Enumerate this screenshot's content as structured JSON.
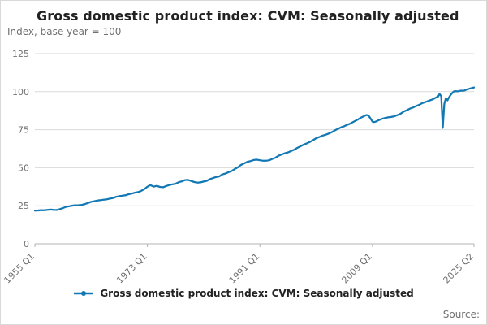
{
  "page": {
    "title": "Gross domestic product index: CVM: Seasonally adjusted",
    "subtitle": "Index, base year = 100",
    "legend_label": "Gross domestic product index: CVM: Seasonally adjusted",
    "source_label": "Source:"
  },
  "colors": {
    "line": "#1178b4",
    "grid": "#d9d9d9",
    "axis": "#b3b3b3",
    "text": "#222222",
    "muted": "#707071"
  },
  "chart_data": {
    "type": "line",
    "title": "Gross domestic product index: CVM: Seasonally adjusted",
    "subtitle": "Index, base year = 100",
    "xlabel": "",
    "ylabel": "Index, base year = 100",
    "ylim": [
      0,
      125
    ],
    "yticks": [
      0,
      25,
      50,
      75,
      100,
      125
    ],
    "xlim": [
      1955,
      2025.25
    ],
    "xticks": [
      {
        "x": 1955,
        "label": "1955 Q1"
      },
      {
        "x": 1973,
        "label": "1973 Q1"
      },
      {
        "x": 1991,
        "label": "1991 Q1"
      },
      {
        "x": 2009,
        "label": "2009 Q1"
      },
      {
        "x": 2025.25,
        "label": "2025 Q2"
      }
    ],
    "grid": "horizontal",
    "legend_position": "bottom",
    "series": [
      {
        "name": "Gross domestic product index: CVM: Seasonally adjusted",
        "points": [
          [
            1955,
            21.8
          ],
          [
            1955.5,
            21.9
          ],
          [
            1956,
            22.1
          ],
          [
            1956.5,
            22.0
          ],
          [
            1957,
            22.3
          ],
          [
            1957.5,
            22.5
          ],
          [
            1958,
            22.3
          ],
          [
            1958.5,
            22.2
          ],
          [
            1959,
            22.8
          ],
          [
            1959.5,
            23.5
          ],
          [
            1960,
            24.3
          ],
          [
            1960.5,
            24.7
          ],
          [
            1961,
            25.1
          ],
          [
            1961.5,
            25.3
          ],
          [
            1962,
            25.4
          ],
          [
            1962.5,
            25.6
          ],
          [
            1963,
            26.1
          ],
          [
            1963.5,
            26.8
          ],
          [
            1964,
            27.6
          ],
          [
            1964.5,
            28.0
          ],
          [
            1965,
            28.4
          ],
          [
            1965.5,
            28.7
          ],
          [
            1966,
            29.0
          ],
          [
            1966.5,
            29.2
          ],
          [
            1967,
            29.7
          ],
          [
            1967.5,
            30.1
          ],
          [
            1968,
            30.9
          ],
          [
            1968.5,
            31.3
          ],
          [
            1969,
            31.6
          ],
          [
            1969.5,
            31.9
          ],
          [
            1970,
            32.6
          ],
          [
            1970.5,
            33.0
          ],
          [
            1971,
            33.6
          ],
          [
            1971.5,
            34.0
          ],
          [
            1972,
            34.8
          ],
          [
            1972.5,
            35.9
          ],
          [
            1973,
            37.5
          ],
          [
            1973.25,
            38.2
          ],
          [
            1973.5,
            38.5
          ],
          [
            1974,
            37.6
          ],
          [
            1974.5,
            38.1
          ],
          [
            1975,
            37.4
          ],
          [
            1975.5,
            37.2
          ],
          [
            1976,
            38.0
          ],
          [
            1976.5,
            38.6
          ],
          [
            1977,
            39.1
          ],
          [
            1977.5,
            39.5
          ],
          [
            1978,
            40.5
          ],
          [
            1978.5,
            41.0
          ],
          [
            1979,
            41.9
          ],
          [
            1979.5,
            42.0
          ],
          [
            1980,
            41.3
          ],
          [
            1980.5,
            40.6
          ],
          [
            1981,
            40.2
          ],
          [
            1981.5,
            40.4
          ],
          [
            1982,
            40.9
          ],
          [
            1982.5,
            41.4
          ],
          [
            1983,
            42.5
          ],
          [
            1983.5,
            43.2
          ],
          [
            1984,
            43.9
          ],
          [
            1984.5,
            44.3
          ],
          [
            1985,
            45.6
          ],
          [
            1985.5,
            46.2
          ],
          [
            1986,
            47.1
          ],
          [
            1986.5,
            47.9
          ],
          [
            1987,
            49.2
          ],
          [
            1987.5,
            50.3
          ],
          [
            1988,
            51.9
          ],
          [
            1988.5,
            52.9
          ],
          [
            1989,
            53.9
          ],
          [
            1989.5,
            54.4
          ],
          [
            1990,
            55.1
          ],
          [
            1990.5,
            55.3
          ],
          [
            1991,
            54.9
          ],
          [
            1991.5,
            54.6
          ],
          [
            1992,
            54.6
          ],
          [
            1992.5,
            54.9
          ],
          [
            1993,
            55.8
          ],
          [
            1993.5,
            56.6
          ],
          [
            1994,
            57.9
          ],
          [
            1994.5,
            58.7
          ],
          [
            1995,
            59.5
          ],
          [
            1995.5,
            60.1
          ],
          [
            1996,
            61.0
          ],
          [
            1996.5,
            61.9
          ],
          [
            1997,
            63.1
          ],
          [
            1997.5,
            64.1
          ],
          [
            1998,
            65.2
          ],
          [
            1998.5,
            66.0
          ],
          [
            1999,
            67.0
          ],
          [
            1999.5,
            68.1
          ],
          [
            2000,
            69.4
          ],
          [
            2000.5,
            70.2
          ],
          [
            2001,
            71.1
          ],
          [
            2001.5,
            71.7
          ],
          [
            2002,
            72.5
          ],
          [
            2002.5,
            73.4
          ],
          [
            2003,
            74.6
          ],
          [
            2003.5,
            75.6
          ],
          [
            2004,
            76.6
          ],
          [
            2004.5,
            77.3
          ],
          [
            2005,
            78.3
          ],
          [
            2005.5,
            79.1
          ],
          [
            2006,
            80.3
          ],
          [
            2006.5,
            81.3
          ],
          [
            2007,
            82.6
          ],
          [
            2007.5,
            83.6
          ],
          [
            2008,
            84.6
          ],
          [
            2008.25,
            84.5
          ],
          [
            2008.5,
            83.6
          ],
          [
            2008.75,
            82.0
          ],
          [
            2009,
            80.3
          ],
          [
            2009.25,
            80.0
          ],
          [
            2009.5,
            80.3
          ],
          [
            2009.75,
            80.7
          ],
          [
            2010,
            81.3
          ],
          [
            2010.5,
            82.1
          ],
          [
            2011,
            82.7
          ],
          [
            2011.5,
            83.1
          ],
          [
            2012,
            83.4
          ],
          [
            2012.5,
            83.8
          ],
          [
            2013,
            84.6
          ],
          [
            2013.5,
            85.5
          ],
          [
            2014,
            86.9
          ],
          [
            2014.5,
            87.8
          ],
          [
            2015,
            88.9
          ],
          [
            2015.5,
            89.6
          ],
          [
            2016,
            90.6
          ],
          [
            2016.5,
            91.4
          ],
          [
            2017,
            92.5
          ],
          [
            2017.5,
            93.2
          ],
          [
            2018,
            94.0
          ],
          [
            2018.5,
            94.7
          ],
          [
            2019,
            95.8
          ],
          [
            2019.25,
            96.3
          ],
          [
            2019.5,
            96.7
          ],
          [
            2019.75,
            98.5
          ],
          [
            2020,
            97.0
          ],
          [
            2020.25,
            76.2
          ],
          [
            2020.5,
            92.0
          ],
          [
            2020.75,
            95.6
          ],
          [
            2021,
            94.3
          ],
          [
            2021.25,
            96.2
          ],
          [
            2021.5,
            97.8
          ],
          [
            2021.75,
            99.0
          ],
          [
            2022,
            100.1
          ],
          [
            2022.25,
            100.4
          ],
          [
            2022.5,
            100.2
          ],
          [
            2022.75,
            100.3
          ],
          [
            2023,
            100.6
          ],
          [
            2023.25,
            100.7
          ],
          [
            2023.5,
            100.6
          ],
          [
            2023.75,
            100.8
          ],
          [
            2024,
            101.3
          ],
          [
            2024.25,
            101.7
          ],
          [
            2024.5,
            101.9
          ],
          [
            2025,
            102.5
          ],
          [
            2025.25,
            102.8
          ]
        ]
      }
    ]
  }
}
